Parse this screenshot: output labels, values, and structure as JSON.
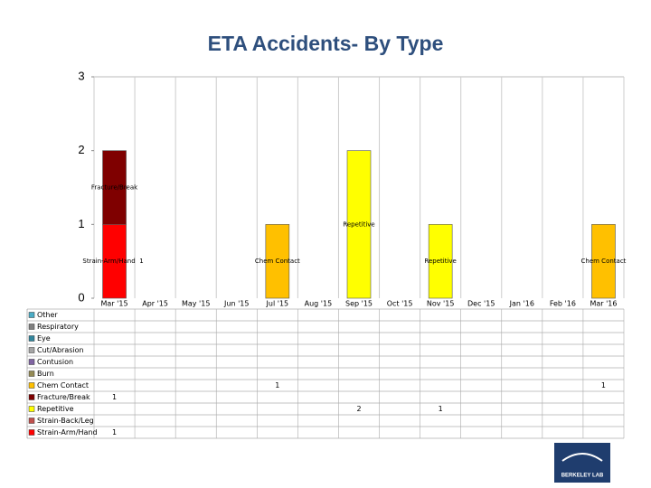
{
  "chart_data": {
    "type": "bar",
    "stacked": true,
    "title": "ETA Accidents- By Type",
    "categories": [
      "Mar '15",
      "Apr '15",
      "May '15",
      "Jun '15",
      "Jul '15",
      "Aug '15",
      "Sep '15",
      "Oct '15",
      "Nov '15",
      "Dec '15",
      "Jan '16",
      "Feb '16",
      "Mar '16"
    ],
    "series": [
      {
        "name": "Other",
        "color": "#4bacc6",
        "values": [
          null,
          null,
          null,
          null,
          null,
          null,
          null,
          null,
          null,
          null,
          null,
          null,
          null
        ]
      },
      {
        "name": "Respiratory",
        "color": "#7f7f7f",
        "values": [
          null,
          null,
          null,
          null,
          null,
          null,
          null,
          null,
          null,
          null,
          null,
          null,
          null
        ]
      },
      {
        "name": "Eye",
        "color": "#31859c",
        "values": [
          null,
          null,
          null,
          null,
          null,
          null,
          null,
          null,
          null,
          null,
          null,
          null,
          null
        ]
      },
      {
        "name": "Cut/Abrasion",
        "color": "#a5a5a5",
        "values": [
          null,
          null,
          null,
          null,
          null,
          null,
          null,
          null,
          null,
          null,
          null,
          null,
          null
        ]
      },
      {
        "name": "Contusion",
        "color": "#8064a2",
        "values": [
          null,
          null,
          null,
          null,
          null,
          null,
          null,
          null,
          null,
          null,
          null,
          null,
          null
        ]
      },
      {
        "name": "Burn",
        "color": "#948a54",
        "values": [
          null,
          null,
          null,
          null,
          null,
          null,
          null,
          null,
          null,
          null,
          null,
          null,
          null
        ]
      },
      {
        "name": "Chem Contact",
        "color": "#ffc000",
        "values": [
          null,
          null,
          null,
          null,
          1,
          null,
          null,
          null,
          null,
          null,
          null,
          null,
          1
        ]
      },
      {
        "name": "Fracture/Break",
        "color": "#7f0000",
        "values": [
          1,
          null,
          null,
          null,
          null,
          null,
          null,
          null,
          null,
          null,
          null,
          null,
          null
        ]
      },
      {
        "name": "Repetitive",
        "color": "#ffff00",
        "values": [
          null,
          null,
          null,
          null,
          null,
          null,
          2,
          null,
          1,
          null,
          null,
          null,
          null
        ]
      },
      {
        "name": "Strain-Back/Leg",
        "color": "#c0504d",
        "values": [
          null,
          null,
          null,
          null,
          null,
          null,
          null,
          null,
          null,
          null,
          null,
          null,
          null
        ]
      },
      {
        "name": "Strain-Arm/Hand",
        "color": "#ff0000",
        "label_shows_value": true,
        "values": [
          1,
          null,
          null,
          null,
          null,
          null,
          null,
          null,
          null,
          null,
          null,
          null,
          null
        ]
      }
    ],
    "ylim": [
      0,
      3
    ],
    "yticks": [
      0,
      1,
      2,
      3
    ],
    "grid": "vertical",
    "data_table": true
  },
  "logo": "BERKELEY LAB"
}
